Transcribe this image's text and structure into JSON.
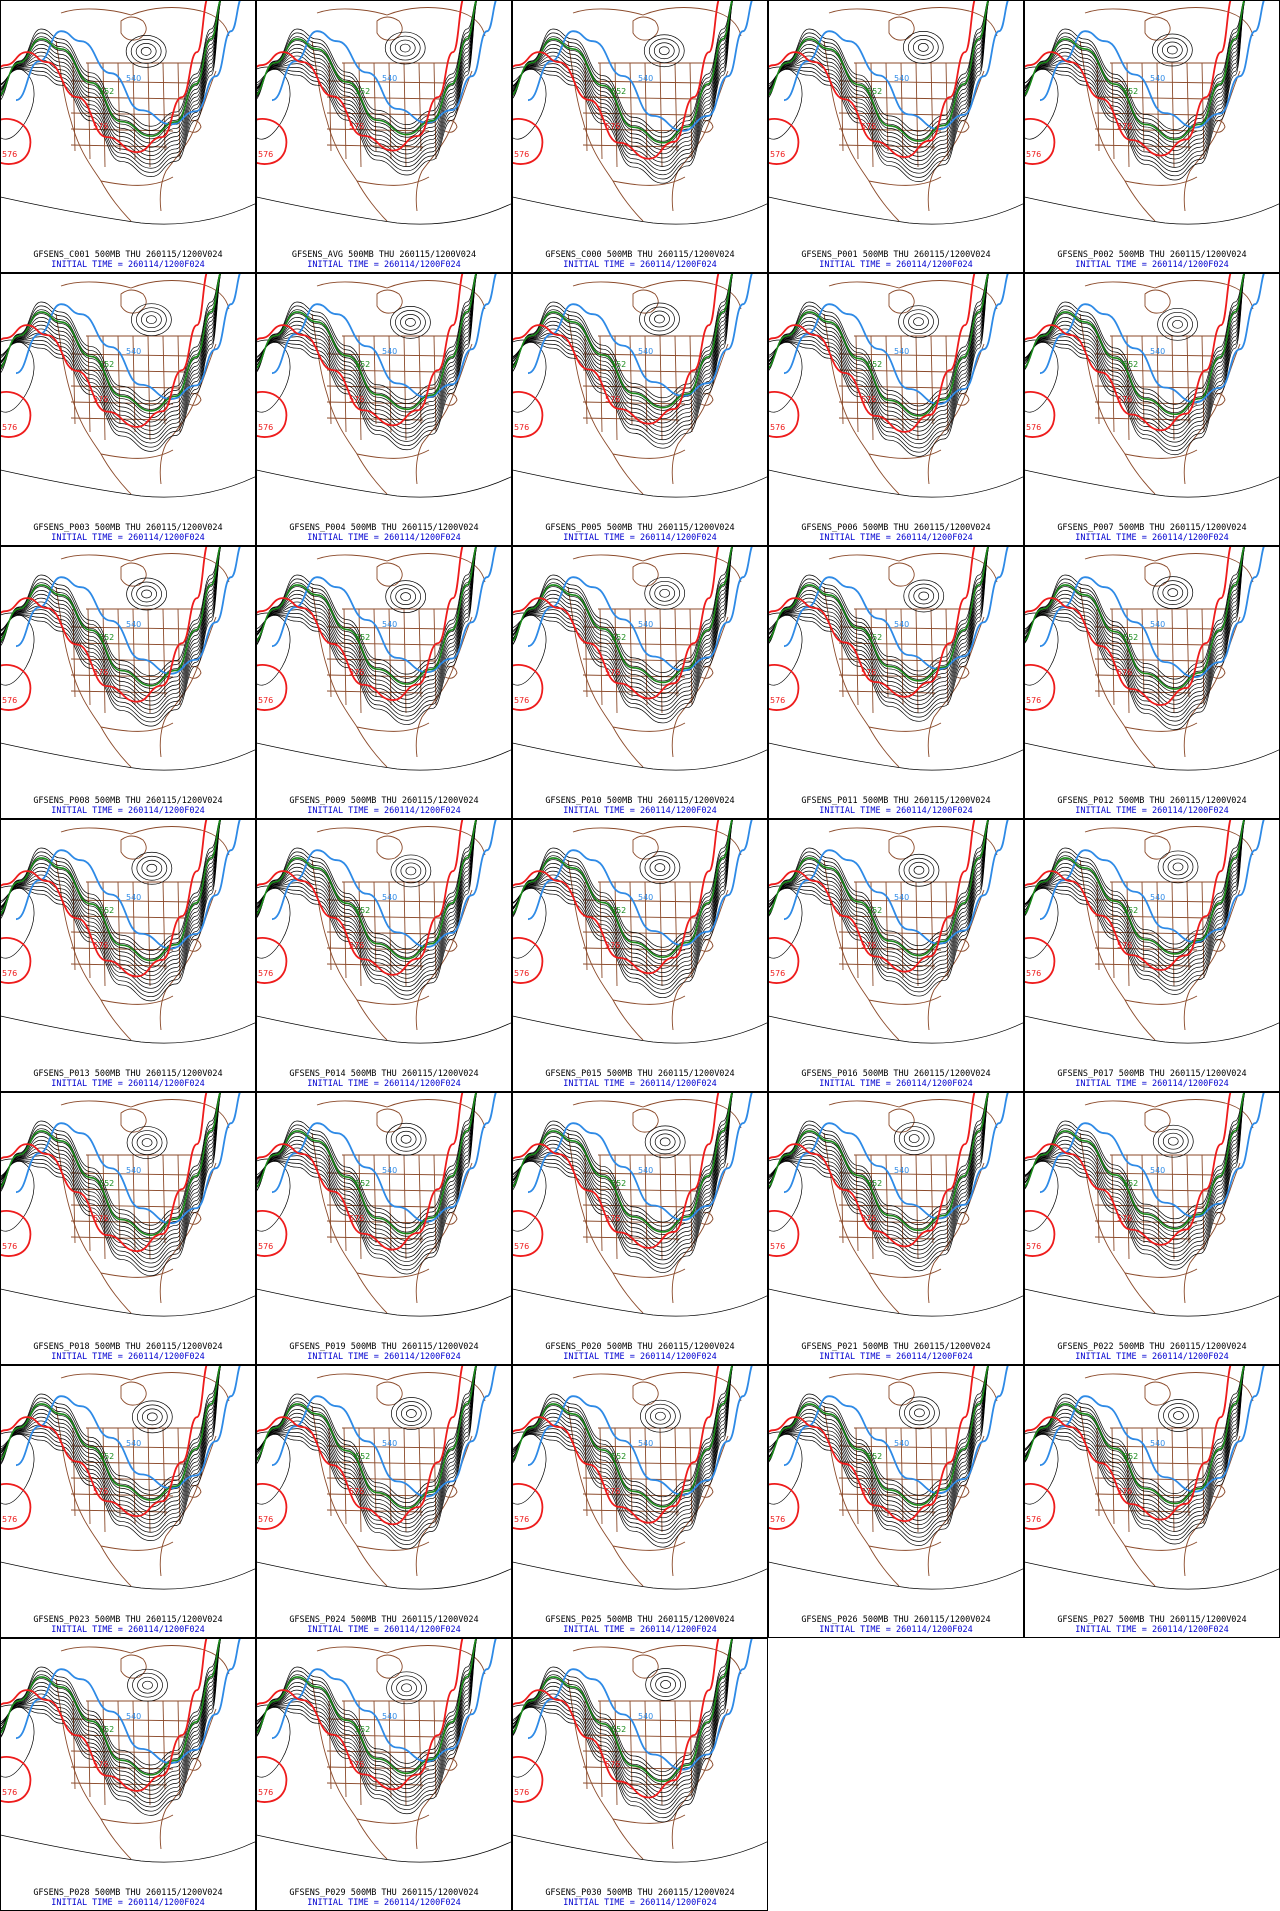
{
  "figure": {
    "contour_labels": {
      "c540": "540",
      "c552": "552",
      "c576": "576",
      "c576_west": "576"
    },
    "colors": {
      "c540": "#2e8ae6",
      "c552": "#1a8a1a",
      "c576": "#ee1c1c",
      "black_contours": "#000000",
      "map_lines": "#8b4a2a",
      "caption_line1": "#000000",
      "caption_line2": "#0000d0",
      "border": "#000000"
    }
  },
  "panels": [
    {
      "line1": "GFSENS_C001 500MB THU 260115/1200V024",
      "line2": "INITIAL TIME = 260114/1200F024"
    },
    {
      "line1": "GFSENS_AVG 500MB THU 260115/1200V024",
      "line2": "INITIAL TIME = 260114/1200F024"
    },
    {
      "line1": "GFSENS_C000 500MB THU 260115/1200V024",
      "line2": "INITIAL TIME = 260114/1200F024"
    },
    {
      "line1": "GFSENS_P001 500MB THU 260115/1200V024",
      "line2": "INITIAL TIME = 260114/1200F024"
    },
    {
      "line1": "GFSENS_P002 500MB THU 260115/1200V024",
      "line2": "INITIAL TIME = 260114/1200F024"
    },
    {
      "line1": "GFSENS_P003 500MB THU 260115/1200V024",
      "line2": "INITIAL TIME = 260114/1200F024"
    },
    {
      "line1": "GFSENS_P004 500MB THU 260115/1200V024",
      "line2": "INITIAL TIME = 260114/1200F024"
    },
    {
      "line1": "GFSENS_P005 500MB THU 260115/1200V024",
      "line2": "INITIAL TIME = 260114/1200F024"
    },
    {
      "line1": "GFSENS_P006 500MB THU 260115/1200V024",
      "line2": "INITIAL TIME = 260114/1200F024"
    },
    {
      "line1": "GFSENS_P007 500MB THU 260115/1200V024",
      "line2": "INITIAL TIME = 260114/1200F024"
    },
    {
      "line1": "GFSENS_P008 500MB THU 260115/1200V024",
      "line2": "INITIAL TIME = 260114/1200F024"
    },
    {
      "line1": "GFSENS_P009 500MB THU 260115/1200V024",
      "line2": "INITIAL TIME = 260114/1200F024"
    },
    {
      "line1": "GFSENS_P010 500MB THU 260115/1200V024",
      "line2": "INITIAL TIME = 260114/1200F024"
    },
    {
      "line1": "GFSENS_P011 500MB THU 260115/1200V024",
      "line2": "INITIAL TIME = 260114/1200F024"
    },
    {
      "line1": "GFSENS_P012 500MB THU 260115/1200V024",
      "line2": "INITIAL TIME = 260114/1200F024"
    },
    {
      "line1": "GFSENS_P013 500MB THU 260115/1200V024",
      "line2": "INITIAL TIME = 260114/1200F024"
    },
    {
      "line1": "GFSENS_P014 500MB THU 260115/1200V024",
      "line2": "INITIAL TIME = 260114/1200F024"
    },
    {
      "line1": "GFSENS_P015 500MB THU 260115/1200V024",
      "line2": "INITIAL TIME = 260114/1200F024"
    },
    {
      "line1": "GFSENS_P016 500MB THU 260115/1200V024",
      "line2": "INITIAL TIME = 260114/1200F024"
    },
    {
      "line1": "GFSENS_P017 500MB THU 260115/1200V024",
      "line2": "INITIAL TIME = 260114/1200F024"
    },
    {
      "line1": "GFSENS_P018 500MB THU 260115/1200V024",
      "line2": "INITIAL TIME = 260114/1200F024"
    },
    {
      "line1": "GFSENS_P019 500MB THU 260115/1200V024",
      "line2": "INITIAL TIME = 260114/1200F024"
    },
    {
      "line1": "GFSENS_P020 500MB THU 260115/1200V024",
      "line2": "INITIAL TIME = 260114/1200F024"
    },
    {
      "line1": "GFSENS_P021 500MB THU 260115/1200V024",
      "line2": "INITIAL TIME = 260114/1200F024"
    },
    {
      "line1": "GFSENS_P022 500MB THU 260115/1200V024",
      "line2": "INITIAL TIME = 260114/1200F024"
    },
    {
      "line1": "GFSENS_P023 500MB THU 260115/1200V024",
      "line2": "INITIAL TIME = 260114/1200F024"
    },
    {
      "line1": "GFSENS_P024 500MB THU 260115/1200V024",
      "line2": "INITIAL TIME = 260114/1200F024"
    },
    {
      "line1": "GFSENS_P025 500MB THU 260115/1200V024",
      "line2": "INITIAL TIME = 260114/1200F024"
    },
    {
      "line1": "GFSENS_P026 500MB THU 260115/1200V024",
      "line2": "INITIAL TIME = 260114/1200F024"
    },
    {
      "line1": "GFSENS_P027 500MB THU 260115/1200V024",
      "line2": "INITIAL TIME = 260114/1200F024"
    },
    {
      "line1": "GFSENS_P028 500MB THU 260115/1200V024",
      "line2": "INITIAL TIME = 260114/1200F024"
    },
    {
      "line1": "GFSENS_P029 500MB THU 260115/1200V024",
      "line2": "INITIAL TIME = 260114/1200F024"
    },
    {
      "line1": "GFSENS_P030 500MB THU 260115/1200V024",
      "line2": "INITIAL TIME = 260114/1200F024"
    }
  ]
}
